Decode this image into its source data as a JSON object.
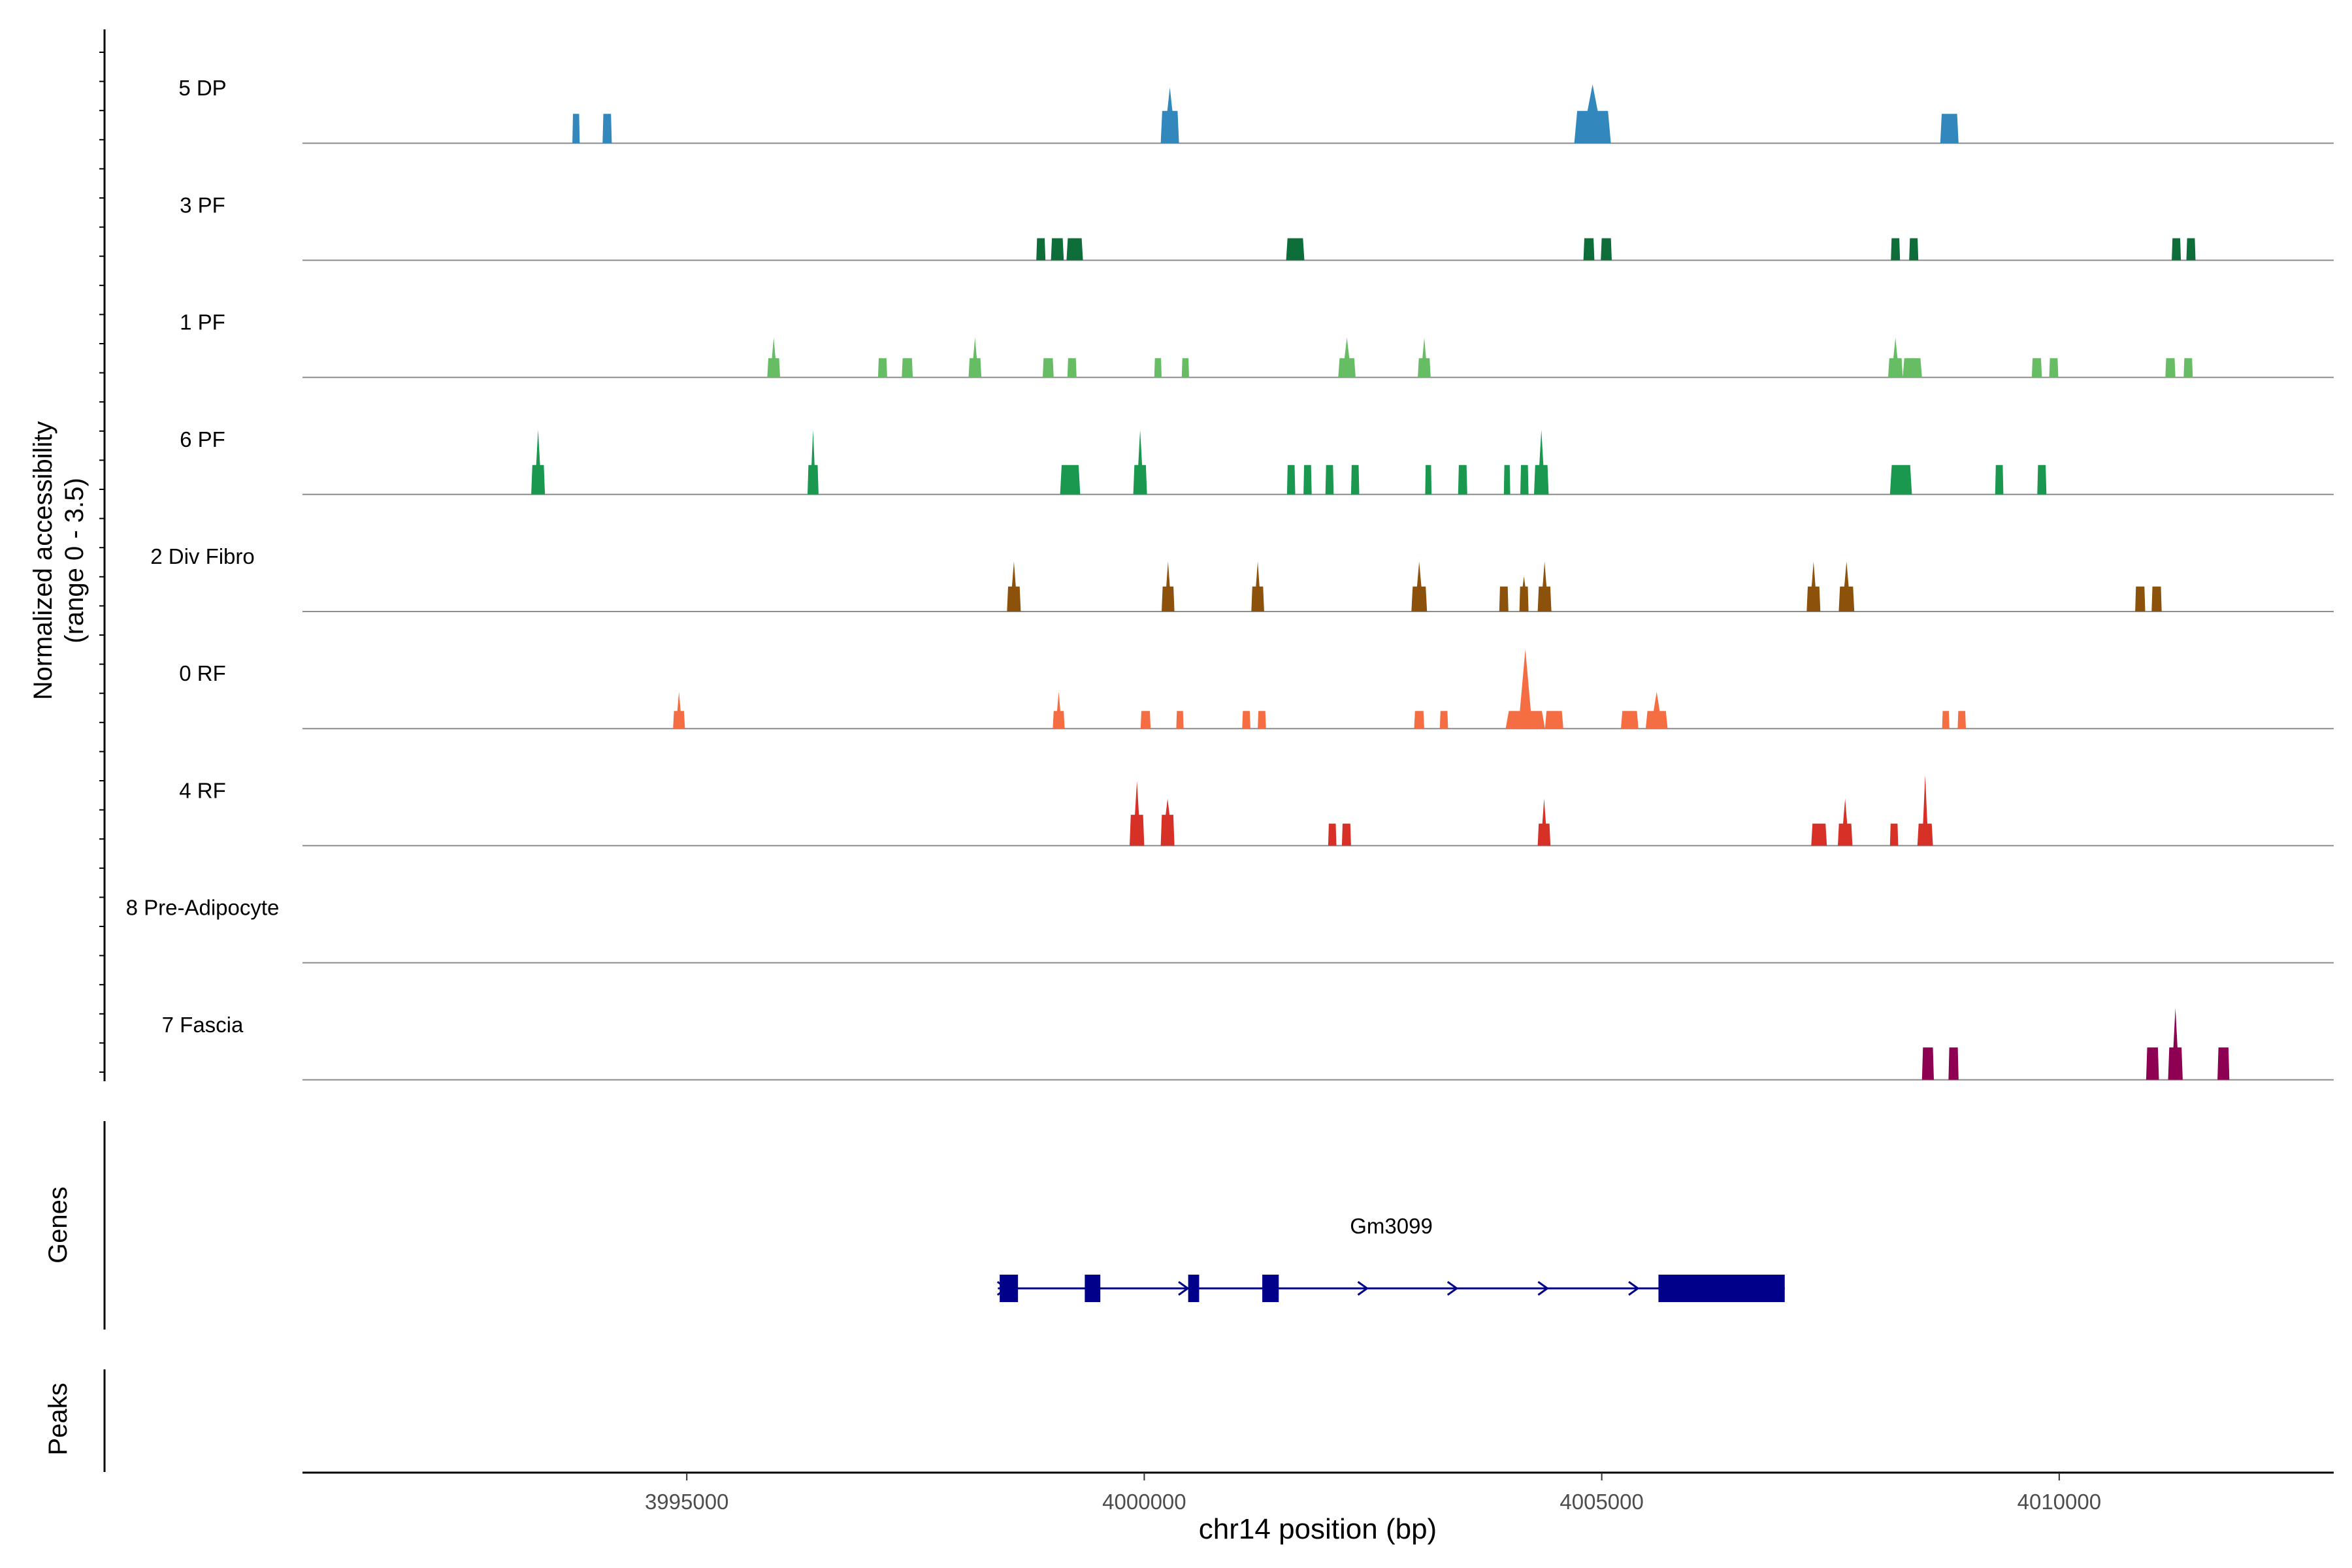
{
  "chart_data": {
    "type": "area",
    "title": "",
    "ylabel_line1": "Normalized accessibility",
    "ylabel_line2": "(range 0 - 3.5)",
    "xlabel": "chr14 position (bp)",
    "xlim": [
      3990800,
      4013000
    ],
    "ylim": [
      0,
      3.5
    ],
    "xticks": [
      3995000,
      4000000,
      4005000,
      4010000
    ],
    "xtick_labels": [
      "3995000",
      "4000000",
      "4005000",
      "4010000"
    ],
    "genes_label": "Genes",
    "peaks_label": "Peaks",
    "tracks": [
      {
        "name": "5 DP",
        "color": "#3288bd",
        "peaks": [
          {
            "start": 3993750,
            "end": 3993830,
            "height": 1.0,
            "apex": 1.0
          },
          {
            "start": 3994080,
            "end": 3994180,
            "height": 1.0,
            "apex": 1.0
          },
          {
            "start": 4000180,
            "end": 4000380,
            "height": 1.1,
            "apex": 1.9
          },
          {
            "start": 4004700,
            "end": 4005100,
            "height": 1.1,
            "apex": 2.0
          },
          {
            "start": 4008700,
            "end": 4008900,
            "height": 1.0,
            "apex": 1.0
          }
        ]
      },
      {
        "name": "3 PF",
        "color": "#0e6e3a",
        "peaks": [
          {
            "start": 3998820,
            "end": 3998920,
            "height": 0.75,
            "apex": 0.75
          },
          {
            "start": 3998980,
            "end": 3999120,
            "height": 0.75,
            "apex": 0.75
          },
          {
            "start": 3999150,
            "end": 3999330,
            "height": 0.75,
            "apex": 0.75
          },
          {
            "start": 4001550,
            "end": 4001750,
            "height": 0.75,
            "apex": 0.75
          },
          {
            "start": 4004800,
            "end": 4004920,
            "height": 0.75,
            "apex": 0.75
          },
          {
            "start": 4004990,
            "end": 4005110,
            "height": 0.75,
            "apex": 0.75
          },
          {
            "start": 4008160,
            "end": 4008260,
            "height": 0.75,
            "apex": 0.75
          },
          {
            "start": 4008360,
            "end": 4008460,
            "height": 0.75,
            "apex": 0.75
          },
          {
            "start": 4011230,
            "end": 4011330,
            "height": 0.75,
            "apex": 0.75
          },
          {
            "start": 4011390,
            "end": 4011490,
            "height": 0.75,
            "apex": 0.75
          }
        ]
      },
      {
        "name": "1 PF",
        "color": "#66bd63",
        "peaks": [
          {
            "start": 3995880,
            "end": 3996020,
            "height": 0.65,
            "apex": 1.35
          },
          {
            "start": 3997090,
            "end": 3997190,
            "height": 0.65,
            "apex": 0.65
          },
          {
            "start": 3997350,
            "end": 3997470,
            "height": 0.65,
            "apex": 0.65
          },
          {
            "start": 3998080,
            "end": 3998220,
            "height": 0.65,
            "apex": 1.35
          },
          {
            "start": 3998890,
            "end": 3999010,
            "height": 0.65,
            "apex": 0.65
          },
          {
            "start": 3999160,
            "end": 3999260,
            "height": 0.65,
            "apex": 0.65
          },
          {
            "start": 4000110,
            "end": 4000190,
            "height": 0.65,
            "apex": 0.65
          },
          {
            "start": 4000410,
            "end": 4000490,
            "height": 0.65,
            "apex": 0.65
          },
          {
            "start": 4002120,
            "end": 4002310,
            "height": 0.65,
            "apex": 1.35
          },
          {
            "start": 4002990,
            "end": 4003130,
            "height": 0.65,
            "apex": 1.35
          },
          {
            "start": 4008130,
            "end": 4008290,
            "height": 0.65,
            "apex": 1.35
          },
          {
            "start": 4008290,
            "end": 4008500,
            "height": 0.65,
            "apex": 0.65
          },
          {
            "start": 4009700,
            "end": 4009810,
            "height": 0.65,
            "apex": 0.65
          },
          {
            "start": 4009890,
            "end": 4009990,
            "height": 0.65,
            "apex": 0.65
          },
          {
            "start": 4011160,
            "end": 4011270,
            "height": 0.65,
            "apex": 0.65
          },
          {
            "start": 4011360,
            "end": 4011460,
            "height": 0.65,
            "apex": 0.65
          }
        ]
      },
      {
        "name": "6 PF",
        "color": "#1a9850",
        "peaks": [
          {
            "start": 3993300,
            "end": 3993450,
            "height": 1.0,
            "apex": 2.2
          },
          {
            "start": 3996320,
            "end": 3996440,
            "height": 1.0,
            "apex": 2.2
          },
          {
            "start": 3999080,
            "end": 3999300,
            "height": 1.0,
            "apex": 1.0
          },
          {
            "start": 3999880,
            "end": 4000030,
            "height": 1.0,
            "apex": 2.2
          },
          {
            "start": 4001560,
            "end": 4001650,
            "height": 1.0,
            "apex": 1.0
          },
          {
            "start": 4001740,
            "end": 4001830,
            "height": 1.0,
            "apex": 1.0
          },
          {
            "start": 4001980,
            "end": 4002070,
            "height": 1.0,
            "apex": 1.0
          },
          {
            "start": 4002260,
            "end": 4002350,
            "height": 1.0,
            "apex": 1.0
          },
          {
            "start": 4003070,
            "end": 4003140,
            "height": 1.0,
            "apex": 1.0
          },
          {
            "start": 4003430,
            "end": 4003530,
            "height": 1.0,
            "apex": 1.0
          },
          {
            "start": 4003930,
            "end": 4004000,
            "height": 1.0,
            "apex": 1.0
          },
          {
            "start": 4004110,
            "end": 4004200,
            "height": 1.0,
            "apex": 1.0
          },
          {
            "start": 4004260,
            "end": 4004420,
            "height": 1.0,
            "apex": 2.2
          },
          {
            "start": 4008150,
            "end": 4008390,
            "height": 1.0,
            "apex": 1.0
          },
          {
            "start": 4009300,
            "end": 4009390,
            "height": 1.0,
            "apex": 1.0
          },
          {
            "start": 4009760,
            "end": 4009860,
            "height": 1.0,
            "apex": 1.0
          }
        ]
      },
      {
        "name": "2 Div Fibro",
        "color": "#8c510a",
        "peaks": [
          {
            "start": 3998500,
            "end": 3998650,
            "height": 0.85,
            "apex": 1.7
          },
          {
            "start": 4000190,
            "end": 4000330,
            "height": 0.85,
            "apex": 1.7
          },
          {
            "start": 4001170,
            "end": 4001310,
            "height": 0.85,
            "apex": 1.7
          },
          {
            "start": 4002920,
            "end": 4003090,
            "height": 0.85,
            "apex": 1.7
          },
          {
            "start": 4003880,
            "end": 4003980,
            "height": 0.85,
            "apex": 0.85
          },
          {
            "start": 4004100,
            "end": 4004200,
            "height": 0.85,
            "apex": 1.2
          },
          {
            "start": 4004300,
            "end": 4004450,
            "height": 0.85,
            "apex": 1.7
          },
          {
            "start": 4007240,
            "end": 4007390,
            "height": 0.85,
            "apex": 1.7
          },
          {
            "start": 4007590,
            "end": 4007760,
            "height": 0.85,
            "apex": 1.7
          },
          {
            "start": 4010830,
            "end": 4010940,
            "height": 0.85,
            "apex": 0.85
          },
          {
            "start": 4011010,
            "end": 4011120,
            "height": 0.85,
            "apex": 0.85
          }
        ]
      },
      {
        "name": "0 RF",
        "color": "#f46d43",
        "peaks": [
          {
            "start": 3994850,
            "end": 3994980,
            "height": 0.6,
            "apex": 1.25
          },
          {
            "start": 3999000,
            "end": 3999130,
            "height": 0.6,
            "apex": 1.25
          },
          {
            "start": 3999960,
            "end": 4000070,
            "height": 0.6,
            "apex": 0.6
          },
          {
            "start": 4000350,
            "end": 4000430,
            "height": 0.6,
            "apex": 0.6
          },
          {
            "start": 4001070,
            "end": 4001160,
            "height": 0.6,
            "apex": 0.6
          },
          {
            "start": 4001240,
            "end": 4001330,
            "height": 0.6,
            "apex": 0.6
          },
          {
            "start": 4002950,
            "end": 4003060,
            "height": 0.6,
            "apex": 0.6
          },
          {
            "start": 4003230,
            "end": 4003320,
            "height": 0.6,
            "apex": 0.6
          },
          {
            "start": 4003950,
            "end": 4004380,
            "height": 0.6,
            "apex": 2.7
          },
          {
            "start": 4004380,
            "end": 4004580,
            "height": 0.6,
            "apex": 0.6
          },
          {
            "start": 4005210,
            "end": 4005400,
            "height": 0.6,
            "apex": 0.6
          },
          {
            "start": 4005480,
            "end": 4005720,
            "height": 0.6,
            "apex": 1.25
          },
          {
            "start": 4008720,
            "end": 4008800,
            "height": 0.6,
            "apex": 0.6
          },
          {
            "start": 4008890,
            "end": 4008980,
            "height": 0.6,
            "apex": 0.6
          }
        ]
      },
      {
        "name": "4 RF",
        "color": "#d73027",
        "peaks": [
          {
            "start": 3999840,
            "end": 4000000,
            "height": 1.05,
            "apex": 2.2
          },
          {
            "start": 4000180,
            "end": 4000330,
            "height": 1.05,
            "apex": 1.6
          },
          {
            "start": 4002010,
            "end": 4002100,
            "height": 0.75,
            "apex": 0.75
          },
          {
            "start": 4002160,
            "end": 4002260,
            "height": 0.75,
            "apex": 0.75
          },
          {
            "start": 4004300,
            "end": 4004440,
            "height": 0.75,
            "apex": 1.6
          },
          {
            "start": 4007290,
            "end": 4007460,
            "height": 0.75,
            "apex": 0.75
          },
          {
            "start": 4007580,
            "end": 4007740,
            "height": 0.75,
            "apex": 1.6
          },
          {
            "start": 4008150,
            "end": 4008240,
            "height": 0.75,
            "apex": 0.75
          },
          {
            "start": 4008450,
            "end": 4008620,
            "height": 0.75,
            "apex": 2.4
          }
        ]
      },
      {
        "name": "8 Pre-Adipocyte",
        "color": "#4d4d4d",
        "peaks": []
      },
      {
        "name": "7 Fascia",
        "color": "#8e0152",
        "peaks": [
          {
            "start": 4008500,
            "end": 4008630,
            "height": 1.1,
            "apex": 1.1
          },
          {
            "start": 4008790,
            "end": 4008900,
            "height": 1.1,
            "apex": 1.1
          },
          {
            "start": 4010950,
            "end": 4011090,
            "height": 1.1,
            "apex": 1.1
          },
          {
            "start": 4011190,
            "end": 4011350,
            "height": 1.1,
            "apex": 2.45
          },
          {
            "start": 4011730,
            "end": 4011860,
            "height": 1.1,
            "apex": 1.1
          }
        ]
      }
    ],
    "gene": {
      "name": "Gm3099",
      "strand": "+",
      "start": 3998400,
      "end": 4007000,
      "color": "#00008b",
      "exons": [
        {
          "start": 3998420,
          "end": 3998620
        },
        {
          "start": 3999350,
          "end": 3999520
        },
        {
          "start": 4000480,
          "end": 4000600
        },
        {
          "start": 4001290,
          "end": 4001470
        },
        {
          "start": 4005620,
          "end": 4007000
        }
      ],
      "arrow_positions": [
        3998460,
        4000440,
        4002400,
        4003380,
        4004370,
        4005360
      ]
    },
    "peaks_regions": []
  }
}
